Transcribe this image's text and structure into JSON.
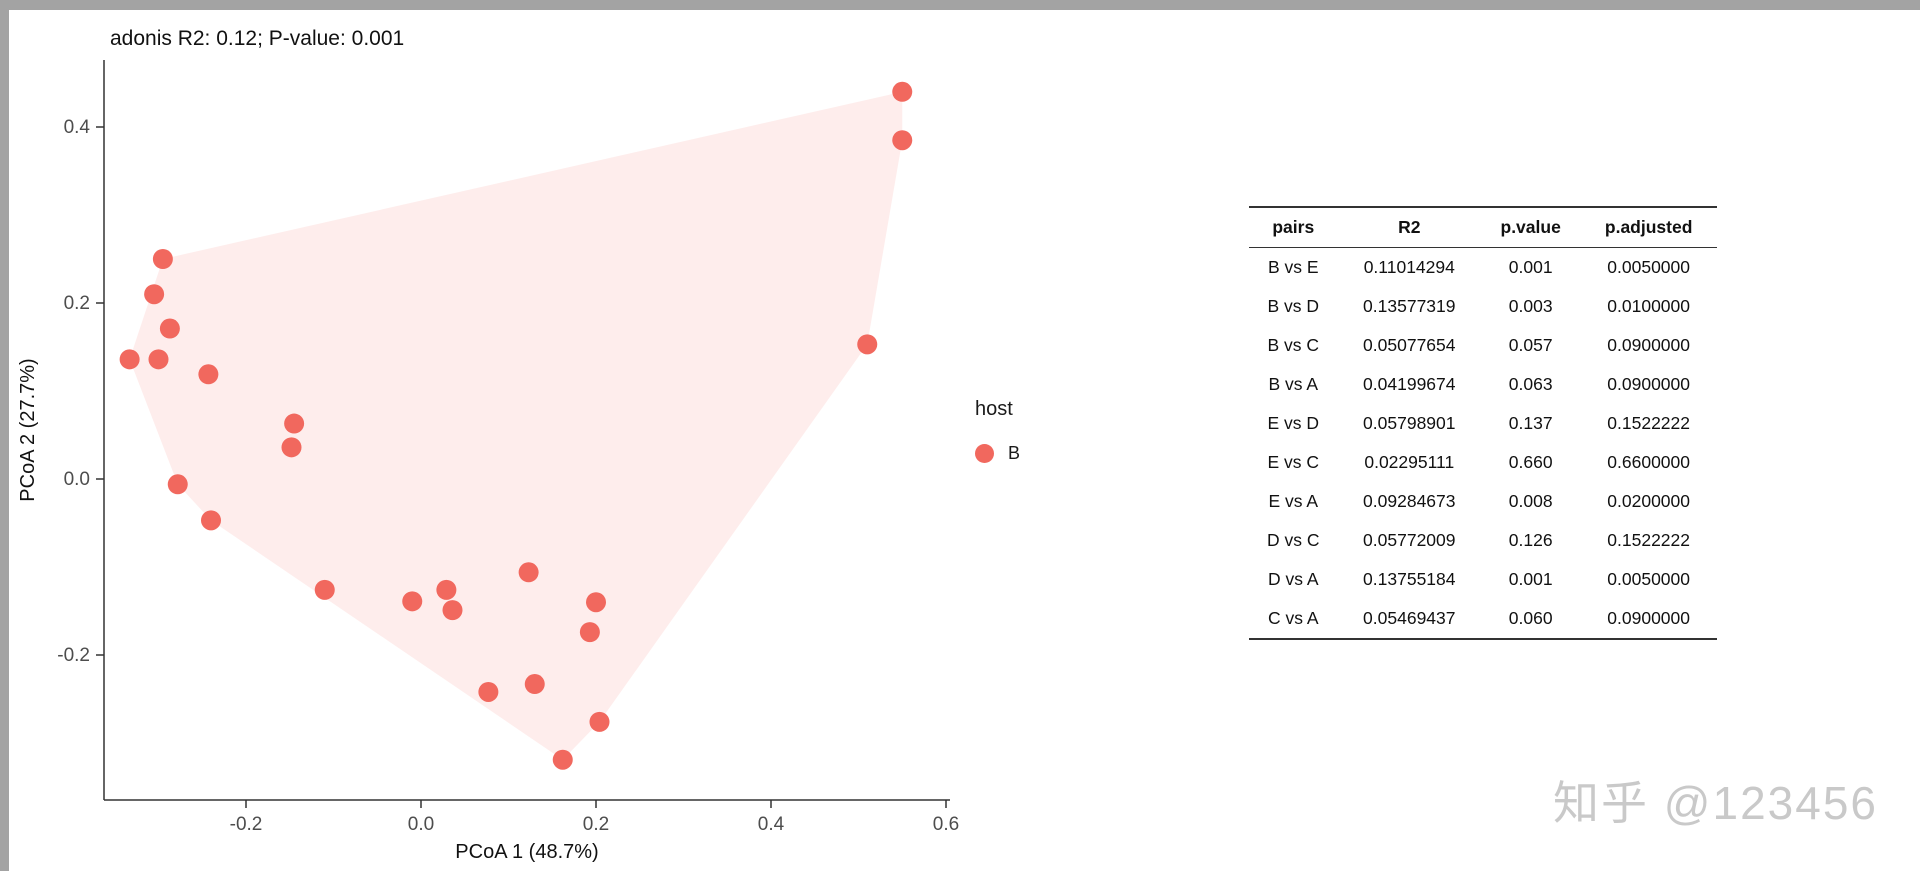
{
  "window": {
    "edge_color": "#a3a3a3"
  },
  "chart_data": {
    "type": "scatter",
    "title": "adonis R2: 0.12; P-value: 0.001",
    "xlabel": "PCoA 1 (48.7%)",
    "ylabel": "PCoA 2 (27.7%)",
    "xlim": [
      -0.38,
      0.63
    ],
    "ylim": [
      -0.37,
      0.49
    ],
    "xticks": [
      -0.2,
      0.0,
      0.2,
      0.4,
      0.6
    ],
    "yticks": [
      -0.2,
      0.0,
      0.2,
      0.4
    ],
    "grid": false,
    "legend_position": "right",
    "series": [
      {
        "name": "B",
        "color": "#f1685e",
        "hull_fill": "rgba(248,118,109,0.13)",
        "points": [
          [
            0.55,
            0.44
          ],
          [
            0.55,
            0.385
          ],
          [
            0.51,
            0.153
          ],
          [
            -0.295,
            0.25
          ],
          [
            -0.305,
            0.21
          ],
          [
            -0.287,
            0.171
          ],
          [
            -0.333,
            0.136
          ],
          [
            -0.3,
            0.136
          ],
          [
            -0.243,
            0.119
          ],
          [
            -0.145,
            0.063
          ],
          [
            -0.148,
            0.036
          ],
          [
            -0.278,
            -0.006
          ],
          [
            -0.24,
            -0.047
          ],
          [
            -0.11,
            -0.126
          ],
          [
            -0.01,
            -0.139
          ],
          [
            0.029,
            -0.126
          ],
          [
            0.036,
            -0.149
          ],
          [
            0.123,
            -0.106
          ],
          [
            0.2,
            -0.14
          ],
          [
            0.193,
            -0.174
          ],
          [
            0.077,
            -0.242
          ],
          [
            0.13,
            -0.233
          ],
          [
            0.204,
            -0.276
          ],
          [
            0.162,
            -0.319
          ]
        ]
      }
    ]
  },
  "legend": {
    "title": "host",
    "entries": [
      {
        "label": "B",
        "color": "#f1685e"
      }
    ]
  },
  "table": {
    "headers": [
      "pairs",
      "R2",
      "p.value",
      "p.adjusted"
    ],
    "rows": [
      [
        "B vs E",
        "0.11014294",
        "0.001",
        "0.0050000"
      ],
      [
        "B vs D",
        "0.13577319",
        "0.003",
        "0.0100000"
      ],
      [
        "B vs C",
        "0.05077654",
        "0.057",
        "0.0900000"
      ],
      [
        "B vs A",
        "0.04199674",
        "0.063",
        "0.0900000"
      ],
      [
        "E vs D",
        "0.05798901",
        "0.137",
        "0.1522222"
      ],
      [
        "E vs C",
        "0.02295111",
        "0.660",
        "0.6600000"
      ],
      [
        "E vs A",
        "0.09284673",
        "0.008",
        "0.0200000"
      ],
      [
        "D vs C",
        "0.05772009",
        "0.126",
        "0.1522222"
      ],
      [
        "D vs A",
        "0.13755184",
        "0.001",
        "0.0050000"
      ],
      [
        "C vs A",
        "0.05469437",
        "0.060",
        "0.0900000"
      ]
    ]
  },
  "watermark": "知乎 @123456"
}
